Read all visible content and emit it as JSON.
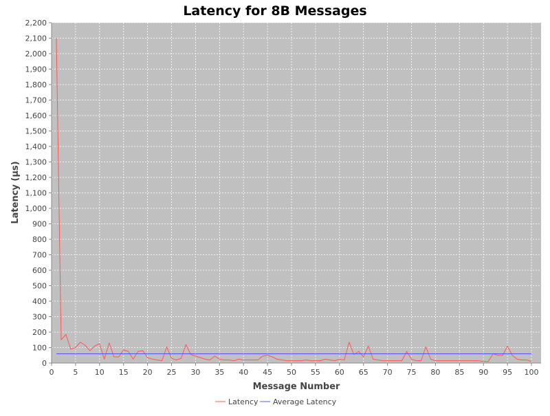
{
  "chart_data": {
    "type": "line",
    "title": "Latency for 8B Messages",
    "xlabel": "Message Number",
    "ylabel": "Latency (µs)",
    "xlim": [
      0,
      102
    ],
    "ylim": [
      0,
      2200
    ],
    "x_ticks": [
      0,
      5,
      10,
      15,
      20,
      25,
      30,
      35,
      40,
      45,
      50,
      55,
      60,
      65,
      70,
      75,
      80,
      85,
      90,
      95,
      100
    ],
    "y_ticks": [
      0,
      100,
      200,
      300,
      400,
      500,
      600,
      700,
      800,
      900,
      1000,
      1100,
      1200,
      1300,
      1400,
      1500,
      1600,
      1700,
      1800,
      1900,
      2000,
      2100,
      2200
    ],
    "x_tick_labels": [
      "0",
      "5",
      "10",
      "15",
      "20",
      "25",
      "30",
      "35",
      "40",
      "45",
      "50",
      "55",
      "60",
      "65",
      "70",
      "75",
      "80",
      "85",
      "90",
      "95",
      "100"
    ],
    "y_tick_labels": [
      "0",
      "100",
      "200",
      "300",
      "400",
      "500",
      "600",
      "700",
      "800",
      "900",
      "1,000",
      "1,100",
      "1,200",
      "1,300",
      "1,400",
      "1,500",
      "1,600",
      "1,700",
      "1,800",
      "1,900",
      "2,000",
      "2,100",
      "2,200"
    ],
    "grid": true,
    "legend_position": "bottom-center",
    "plot_background": "#c0c0c0",
    "series": [
      {
        "name": "Latency",
        "color": "#ff5555",
        "x": [
          1,
          2,
          3,
          4,
          5,
          6,
          7,
          8,
          9,
          10,
          11,
          12,
          13,
          14,
          15,
          16,
          17,
          18,
          19,
          20,
          21,
          22,
          23,
          24,
          25,
          26,
          27,
          28,
          29,
          30,
          31,
          32,
          33,
          34,
          35,
          36,
          37,
          38,
          39,
          40,
          41,
          42,
          43,
          44,
          45,
          46,
          47,
          48,
          49,
          50,
          51,
          52,
          53,
          54,
          55,
          56,
          57,
          58,
          59,
          60,
          61,
          62,
          63,
          64,
          65,
          66,
          67,
          68,
          69,
          70,
          71,
          72,
          73,
          74,
          75,
          76,
          77,
          78,
          79,
          80,
          81,
          82,
          83,
          84,
          85,
          86,
          87,
          88,
          89,
          90,
          91,
          92,
          93,
          94,
          95,
          96,
          97,
          98,
          99,
          100
        ],
        "values": [
          2100,
          150,
          185,
          90,
          100,
          135,
          115,
          80,
          110,
          125,
          25,
          130,
          40,
          40,
          85,
          75,
          25,
          75,
          80,
          35,
          25,
          20,
          15,
          105,
          30,
          20,
          30,
          120,
          55,
          45,
          35,
          25,
          20,
          45,
          25,
          20,
          20,
          15,
          25,
          20,
          20,
          20,
          20,
          45,
          50,
          40,
          25,
          20,
          15,
          15,
          15,
          15,
          20,
          15,
          15,
          15,
          25,
          20,
          15,
          25,
          20,
          135,
          55,
          75,
          40,
          110,
          25,
          20,
          15,
          15,
          15,
          15,
          15,
          75,
          25,
          15,
          15,
          105,
          25,
          15,
          15,
          15,
          15,
          15,
          15,
          15,
          15,
          15,
          15,
          10,
          10,
          60,
          50,
          50,
          110,
          50,
          25,
          20,
          20,
          10
        ]
      },
      {
        "name": "Average Latency",
        "color": "#5555ff",
        "x": [
          1,
          100
        ],
        "values": [
          60,
          60
        ]
      }
    ]
  }
}
